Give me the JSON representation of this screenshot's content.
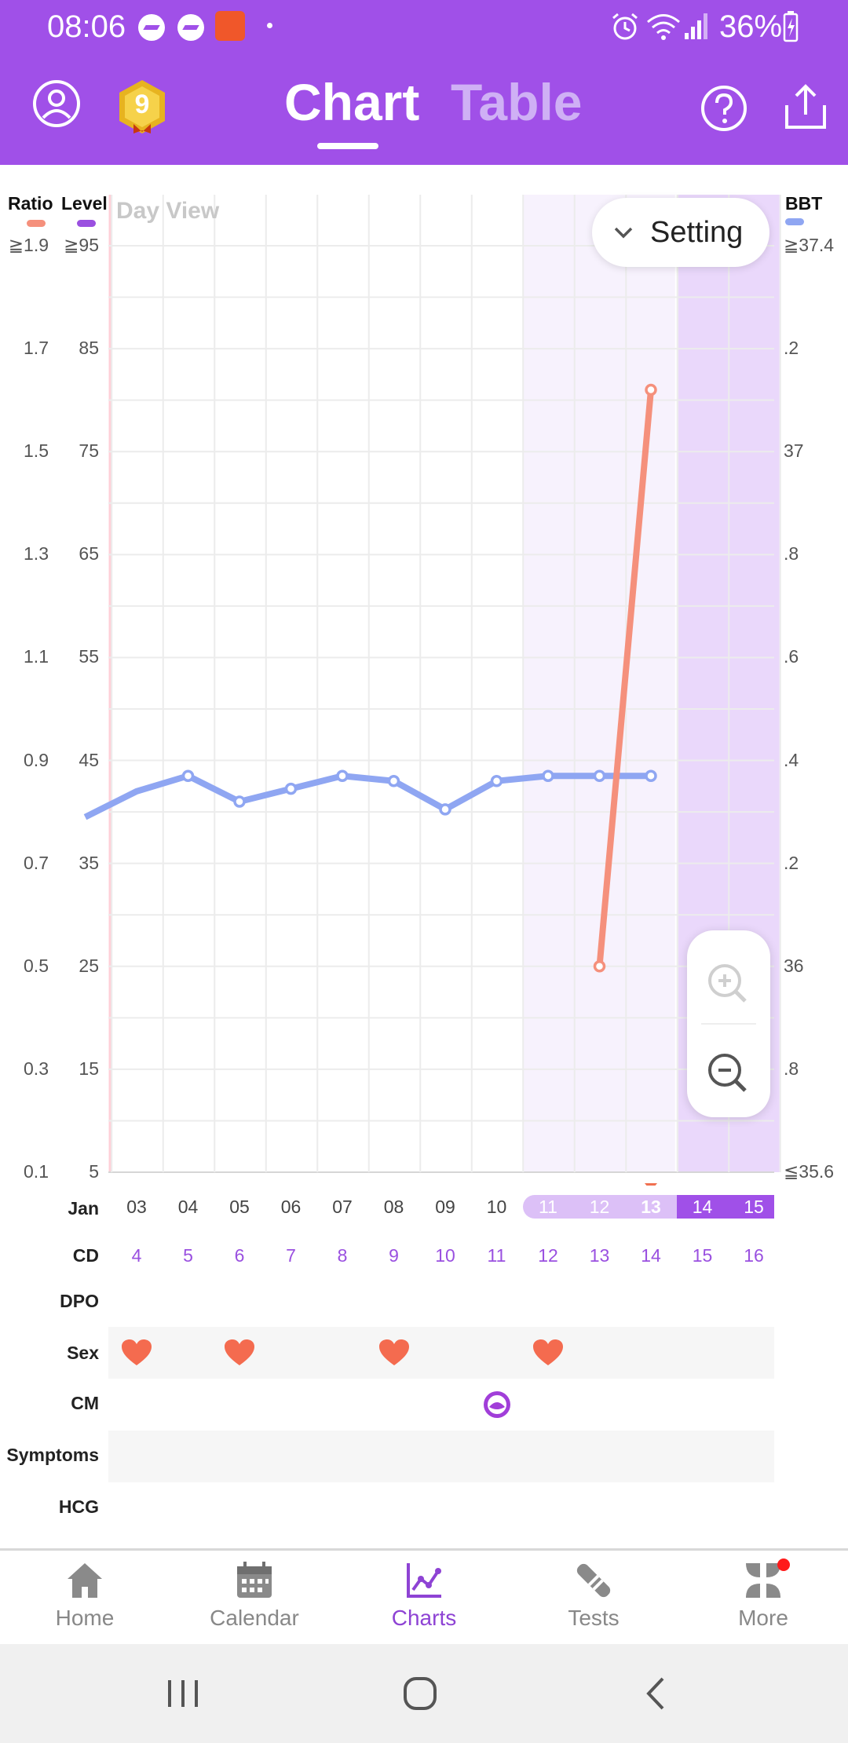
{
  "status_bar": {
    "time": "08:06",
    "battery": "36%"
  },
  "header": {
    "badge_level": "9",
    "tabs": [
      {
        "label": "Chart",
        "active": true
      },
      {
        "label": "Table",
        "active": false
      }
    ]
  },
  "chart": {
    "view_label": "Day View",
    "setting_label": "Setting",
    "left_axis_heads": {
      "ratio": "Ratio",
      "level": "Level"
    },
    "right_axis_head": "BBT",
    "ratio_ticks": [
      "≧1.9",
      "1.7",
      "1.5",
      "1.3",
      "1.1",
      "0.9",
      "0.7",
      "0.5",
      "0.3",
      "0.1"
    ],
    "level_ticks": [
      "≧95",
      "85",
      "75",
      "65",
      "55",
      "45",
      "35",
      "25",
      "15",
      "5"
    ],
    "bbt_ticks": [
      "≧37.4",
      ".2",
      "37",
      ".8",
      ".6",
      ".4",
      ".2",
      "36",
      ".8",
      "≦35.6"
    ],
    "colors": {
      "bbt": "#8fa6f2",
      "ratio": "#f5907c",
      "level": "#9a50e0",
      "accent": "#a050e8"
    }
  },
  "chart_data": {
    "type": "line",
    "x": [
      "03",
      "04",
      "05",
      "06",
      "07",
      "08",
      "09",
      "10",
      "11",
      "12",
      "13",
      "14",
      "15"
    ],
    "series": [
      {
        "name": "BBT",
        "axis": "right",
        "values": [
          36.34,
          36.37,
          36.32,
          36.345,
          36.37,
          36.36,
          36.305,
          36.36,
          36.37,
          36.37,
          36.37,
          null,
          null
        ]
      },
      {
        "name": "Ratio",
        "axis": "left",
        "values": [
          null,
          null,
          null,
          null,
          null,
          null,
          null,
          null,
          null,
          0.5,
          1.62,
          null,
          null
        ]
      }
    ],
    "ratio_ylim": [
      0.1,
      1.9
    ],
    "level_ylim": [
      5,
      95
    ],
    "bbt_ylim": [
      35.6,
      37.4
    ],
    "today": "13",
    "grid": true
  },
  "rows": {
    "jan_label": "Jan",
    "cd_label": "CD",
    "dpo_label": "DPO",
    "sex_label": "Sex",
    "cm_label": "CM",
    "symptoms_label": "Symptoms",
    "hcg_label": "HCG",
    "dates": [
      "03",
      "04",
      "05",
      "06",
      "07",
      "08",
      "09",
      "10",
      "11",
      "12",
      "13",
      "14",
      "15"
    ],
    "cycle_days": [
      "4",
      "5",
      "6",
      "7",
      "8",
      "9",
      "10",
      "11",
      "12",
      "13",
      "14",
      "15",
      "16"
    ],
    "sex_days": [
      "03",
      "05",
      "08",
      "11"
    ],
    "cm_days": [
      "10"
    ]
  },
  "nav": {
    "items": [
      {
        "label": "Home",
        "icon": "home-icon",
        "active": false
      },
      {
        "label": "Calendar",
        "icon": "calendar-icon",
        "active": false
      },
      {
        "label": "Charts",
        "icon": "charts-icon",
        "active": true
      },
      {
        "label": "Tests",
        "icon": "tests-icon",
        "active": false
      },
      {
        "label": "More",
        "icon": "more-icon",
        "active": false
      }
    ]
  }
}
